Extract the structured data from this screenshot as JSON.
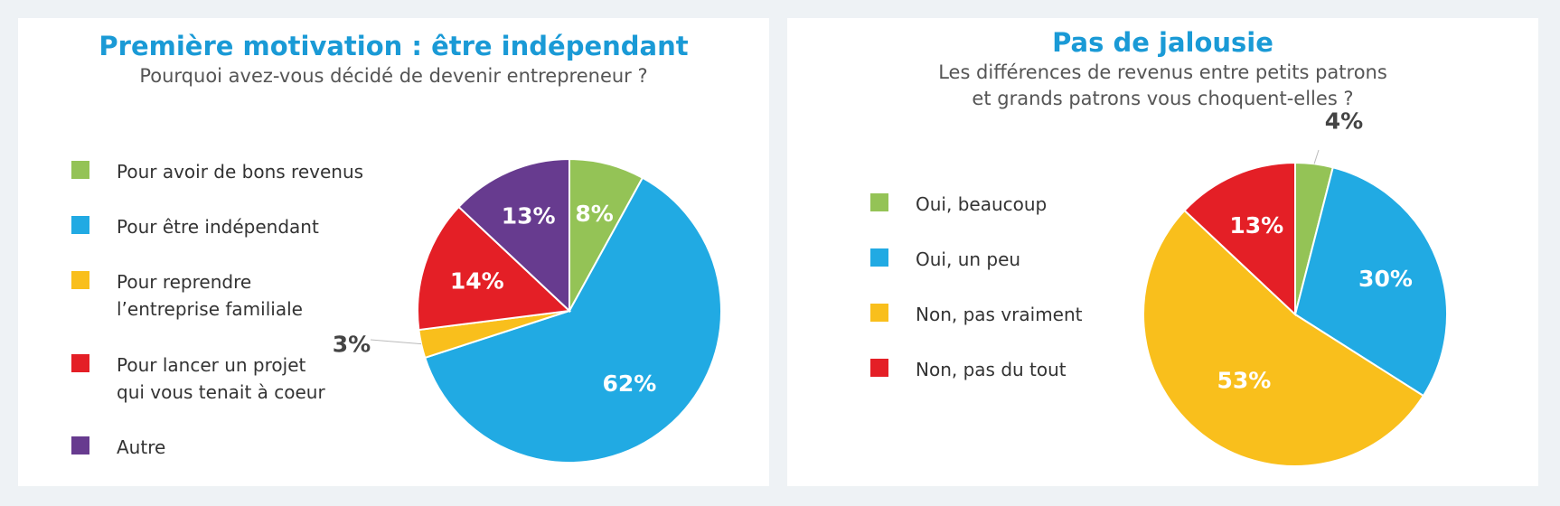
{
  "chart_data": [
    {
      "type": "pie",
      "title": "Première motivation : être indépendant",
      "subtitle": "Pourquoi avez-vous décidé de devenir entrepreneur ?",
      "legend_position": "left",
      "slices": [
        {
          "label": "Pour avoir de bons revenus",
          "label_lines": [
            "Pour avoir de bons revenus"
          ],
          "value": 8,
          "display": "8%",
          "color": "#94c356"
        },
        {
          "label": "Pour être indépendant",
          "label_lines": [
            "Pour être indépendant"
          ],
          "value": 62,
          "display": "62%",
          "color": "#21aae3"
        },
        {
          "label": "Pour reprendre l’entreprise familiale",
          "label_lines": [
            "Pour reprendre",
            "l’entreprise familiale"
          ],
          "value": 3,
          "display": "3%",
          "color": "#f9bf1c"
        },
        {
          "label": "Pour lancer un projet qui vous tenait à coeur",
          "label_lines": [
            "Pour lancer un projet",
            "qui vous tenait à coeur"
          ],
          "value": 14,
          "display": "14%",
          "color": "#e41f26"
        },
        {
          "label": "Autre",
          "label_lines": [
            "Autre"
          ],
          "value": 13,
          "display": "13%",
          "color": "#673b8f"
        }
      ]
    },
    {
      "type": "pie",
      "title": "Pas de jalousie",
      "subtitle_lines": [
        "Les différences de revenus entre petits patrons",
        "et grands patrons vous choquent-elles ?"
      ],
      "legend_position": "left",
      "slices": [
        {
          "label": "Oui, beaucoup",
          "label_lines": [
            "Oui, beaucoup"
          ],
          "value": 4,
          "display": "4%",
          "color": "#94c356"
        },
        {
          "label": "Oui, un peu",
          "label_lines": [
            "Oui, un peu"
          ],
          "value": 30,
          "display": "30%",
          "color": "#21aae3"
        },
        {
          "label": "Non, pas vraiment",
          "label_lines": [
            "Non, pas vraiment"
          ],
          "value": 53,
          "display": "53%",
          "color": "#f9bf1c"
        },
        {
          "label": "Non, pas du tout",
          "label_lines": [
            "Non, pas du tout"
          ],
          "value": 13,
          "display": "13%",
          "color": "#e41f26"
        }
      ]
    }
  ]
}
